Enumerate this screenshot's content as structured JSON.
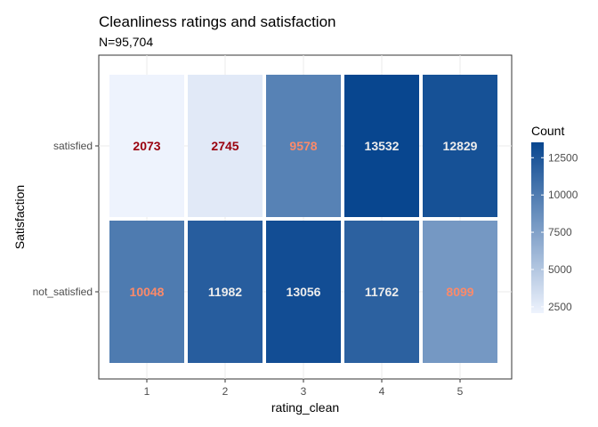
{
  "chart_data": {
    "type": "heatmap",
    "title": "Cleanliness ratings and satisfaction",
    "subtitle": "N=95,704",
    "xlabel": "rating_clean",
    "ylabel": "Satisfaction",
    "x_categories": [
      "1",
      "2",
      "3",
      "4",
      "5"
    ],
    "y_categories": [
      "not_satisfied",
      "satisfied"
    ],
    "cells": [
      {
        "x": "1",
        "y": "satisfied",
        "value": 2073
      },
      {
        "x": "2",
        "y": "satisfied",
        "value": 2745
      },
      {
        "x": "3",
        "y": "satisfied",
        "value": 9578
      },
      {
        "x": "4",
        "y": "satisfied",
        "value": 13532
      },
      {
        "x": "5",
        "y": "satisfied",
        "value": 12829
      },
      {
        "x": "1",
        "y": "not_satisfied",
        "value": 10048
      },
      {
        "x": "2",
        "y": "not_satisfied",
        "value": 11982
      },
      {
        "x": "3",
        "y": "not_satisfied",
        "value": 13056
      },
      {
        "x": "4",
        "y": "not_satisfied",
        "value": 11762
      },
      {
        "x": "5",
        "y": "not_satisfied",
        "value": 8099
      }
    ],
    "legend": {
      "title": "Count",
      "position": "right",
      "ticks": [
        2500,
        5000,
        7500,
        10000,
        12500
      ],
      "range": [
        2073,
        13532
      ],
      "low_color": "#eef3fd",
      "high_color": "#08468f"
    },
    "grid": true
  }
}
